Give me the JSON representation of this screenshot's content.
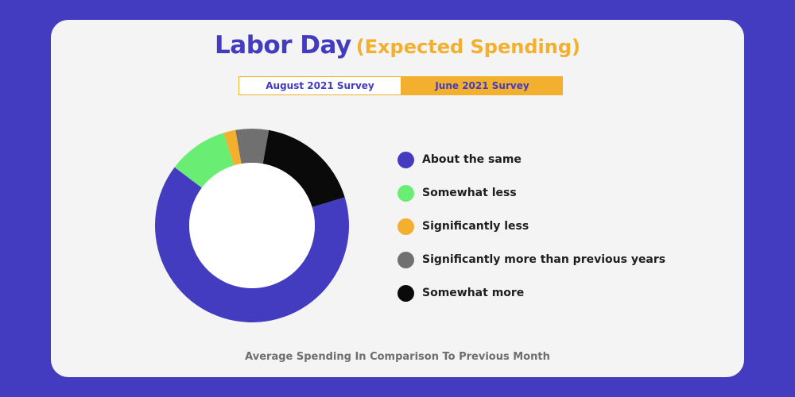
{
  "title": {
    "main": "Labor Day",
    "sub": "(Expected Spending)"
  },
  "tabs": [
    {
      "label": "August 2021 Survey",
      "active": false
    },
    {
      "label": "June 2021 Survey",
      "active": true
    }
  ],
  "chart_data": {
    "type": "pie",
    "title": "Labor Day (Expected Spending)",
    "caption": "Average Spending In Comparison To Previous Month",
    "legend_position": "right",
    "categories": [
      "About the same",
      "Somewhat less",
      "Significantly less",
      "Significantly more than previous years",
      "Somewhat more"
    ],
    "values": [
      65,
      10,
      2,
      5.5,
      17.5
    ],
    "colors": [
      "#433cc0",
      "#69ed72",
      "#f2b02e",
      "#707070",
      "#0a0a0a"
    ]
  }
}
